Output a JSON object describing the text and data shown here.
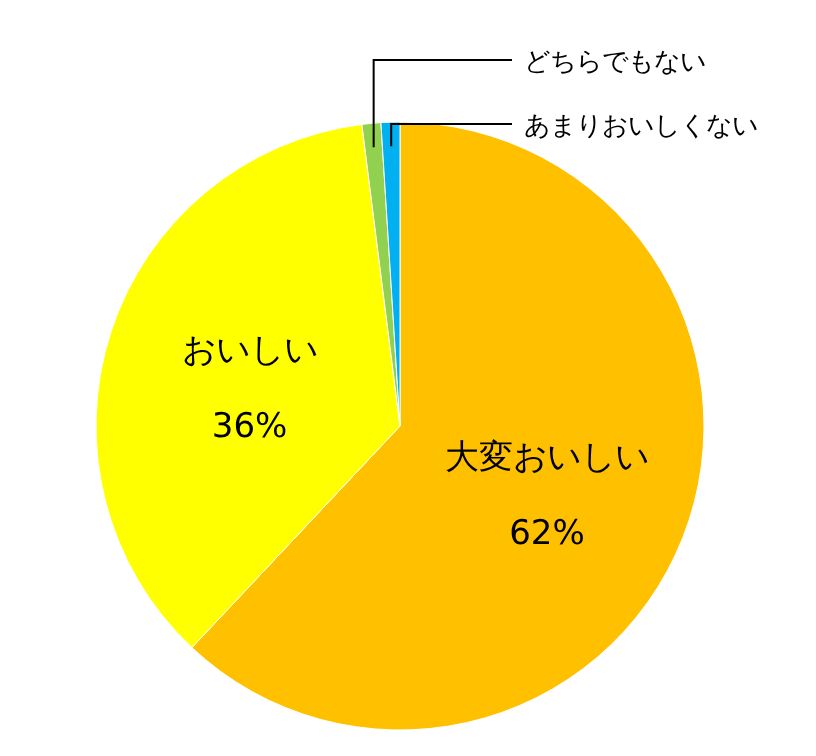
{
  "chart_data": {
    "type": "pie",
    "categories": [
      "大変おいしい",
      "おいしい",
      "どちらでもない",
      "あまりおいしくない"
    ],
    "values": [
      62,
      36,
      1,
      1
    ],
    "colors": [
      "#ffc000",
      "#ffff00",
      "#92d050",
      "#00b0f0"
    ],
    "value_labels": [
      "62%",
      "36%",
      null,
      null
    ]
  }
}
